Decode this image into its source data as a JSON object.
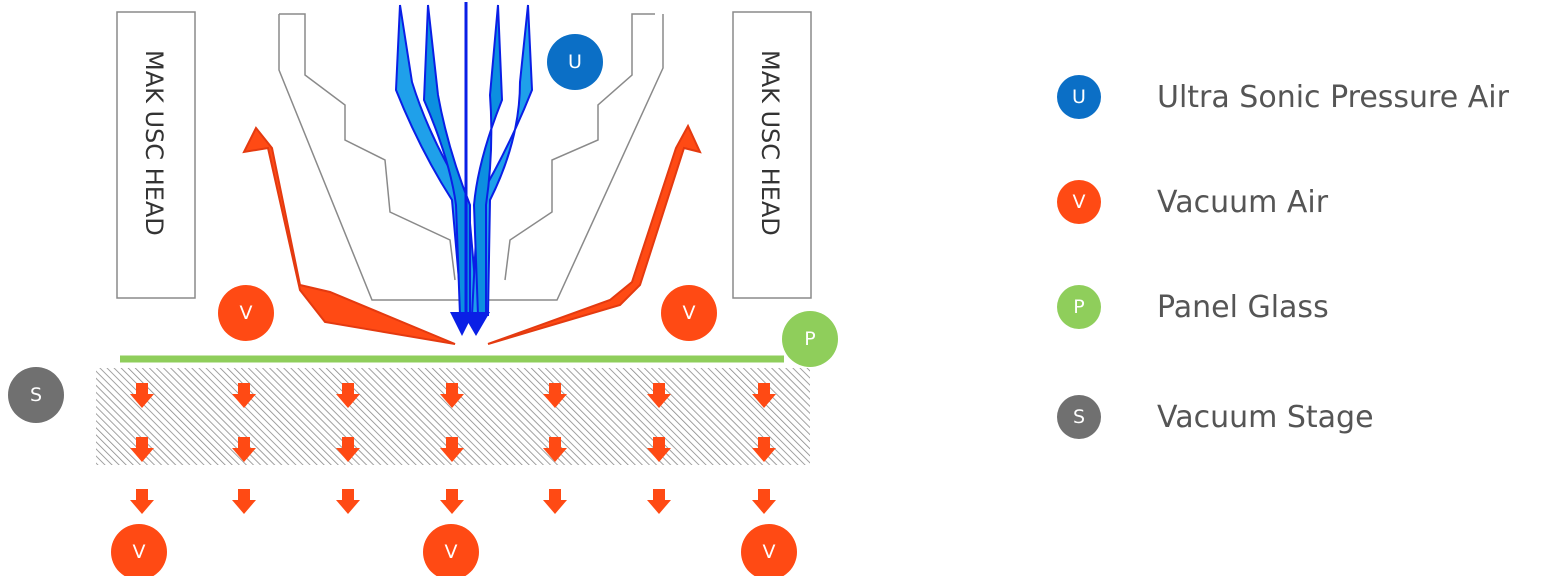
{
  "colors": {
    "ultrasonic": "#0b6fc6",
    "vacuum": "#ff4a14",
    "panel": "#8fce5b",
    "stage": "#707070",
    "air_light": "#1fa0ea",
    "air_dark": "#0a1fe6"
  },
  "diagram": {
    "left_head_label": "MAK USC HEAD",
    "right_head_label": "MAK USC HEAD",
    "badges": {
      "ultrasonic": "U",
      "vacuum_left": "V",
      "vacuum_right": "V",
      "panel": "P",
      "stage": "S",
      "vacuum_bottom_left": "V",
      "vacuum_bottom_center": "V",
      "vacuum_bottom_right": "V"
    }
  },
  "legend": {
    "items": [
      {
        "badge": "U",
        "label": "Ultra Sonic Pressure Air",
        "color": "#0b6fc6"
      },
      {
        "badge": "V",
        "label": "Vacuum Air",
        "color": "#ff4a14"
      },
      {
        "badge": "P",
        "label": "Panel Glass",
        "color": "#8fce5b"
      },
      {
        "badge": "S",
        "label": "Vacuum Stage",
        "color": "#707070"
      }
    ]
  }
}
